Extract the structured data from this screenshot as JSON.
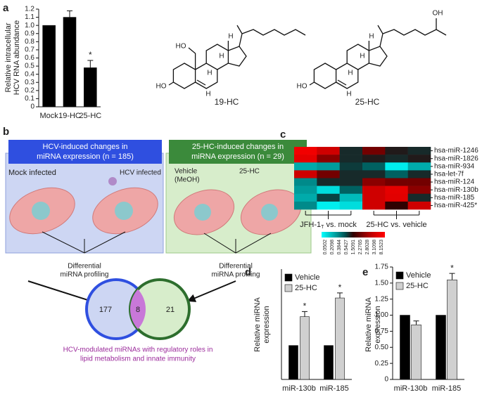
{
  "panel_labels": [
    "a",
    "b",
    "c",
    "d",
    "e"
  ],
  "structures": [
    {
      "name": "19-HC",
      "labels": [
        "HO",
        "HO",
        "H",
        "H",
        "H",
        "H"
      ]
    },
    {
      "name": "25-HC",
      "labels": [
        "HO",
        "H",
        "H",
        "H",
        "H",
        "OH"
      ]
    }
  ],
  "diagram": {
    "left_header": [
      "HCV-induced changes in",
      "miRNA expression (n = 185)"
    ],
    "right_header": [
      "25-HC-induced changes in",
      "miRNA expression (n = 29)"
    ],
    "mock": "Mock infected",
    "hcv": "HCV infected",
    "vehicle": [
      "Vehicle",
      "(MeOH)"
    ],
    "treat": "25-HC",
    "profiling_left": [
      "Differential",
      "miRNA profiling"
    ],
    "profiling_right": [
      "Differential",
      "miRNA profiling"
    ],
    "venn": [
      "177",
      "8",
      "21"
    ],
    "caption": [
      "HCV-modulated miRNAs with regulatory roles in",
      "lipid metabolism and innate immunity"
    ]
  },
  "chart_data": [
    {
      "type": "bar",
      "y_label": [
        "Relative intracellular",
        "HCV RNA abundance"
      ],
      "categories": [
        "Mock",
        "19-HC",
        "25-HC"
      ],
      "series": [
        {
          "color": "#000000",
          "values": [
            1.0,
            1.1,
            0.48
          ],
          "errors": [
            0,
            0.08,
            0.09
          ],
          "annotations": [
            null,
            null,
            "*"
          ]
        }
      ],
      "ylim": [
        0,
        1.2
      ],
      "yticks": [
        0,
        0.1,
        0.2,
        0.3,
        0.4,
        0.5,
        0.6,
        0.7,
        0.8,
        0.9,
        {
          "value": 1,
          "label": "1.0"
        },
        1.1,
        1.2
      ]
    },
    {
      "type": "heatmap",
      "rows": [
        "hsa-miR-1246",
        "hsa-miR-1826",
        "hsa-miR-934",
        "hsa-let-7f",
        "hsa-miR-124",
        "hsa-miR-130b",
        "hsa-miR-185",
        "hsa-miR-425*"
      ],
      "column_groups": [
        {
          "main": "JFH-1",
          "sub": "T",
          "rest": " vs. mock"
        },
        {
          "main": "25-HC vs. vehicle"
        }
      ],
      "values": [
        [
          6,
          3,
          1,
          2.3,
          1.2,
          1
        ],
        [
          4,
          2.5,
          1,
          1.2,
          1,
          1.2
        ],
        [
          0.3,
          0.35,
          0.8,
          0.5,
          0.1,
          0.3
        ],
        [
          3,
          2.3,
          1,
          1,
          0.5,
          1
        ],
        [
          0.4,
          1,
          1,
          2.5,
          2.3,
          2.3
        ],
        [
          0.35,
          0.15,
          0.5,
          3,
          4,
          2.5
        ],
        [
          0.3,
          0.7,
          0.25,
          3,
          3.5,
          1
        ],
        [
          0.4,
          0.1,
          0.15,
          3,
          1.5,
          3
        ]
      ],
      "colorbar_ticks": [
        0.0502,
        0.2098,
        0.3844,
        0.5427,
        1.5091,
        2.2765,
        2.8028,
        3.1098,
        8.1523
      ],
      "colorbar_colors": [
        "#00ffff",
        "#00c8c8",
        "#009090",
        "#005050",
        "#300000",
        "#700000",
        "#b00000",
        "#e00000",
        "#ff0000"
      ]
    },
    {
      "type": "bar",
      "y_label": [
        "Relative miRNA",
        "expression"
      ],
      "categories": [
        "miR-130b",
        "miR-185"
      ],
      "series": [
        {
          "name": "Vehicle",
          "color": "#000000",
          "values": [
            1,
            1
          ],
          "errors": [
            0,
            0
          ],
          "annotations": [
            null,
            null
          ]
        },
        {
          "name": "25-HC",
          "color": "#d0d0d0",
          "values": [
            1.85,
            2.4
          ],
          "errors": [
            0.15,
            0.15
          ],
          "annotations": [
            "*",
            "*"
          ]
        }
      ],
      "ylim": [
        0,
        3.25
      ]
    },
    {
      "type": "bar",
      "y_label": [
        "Relative miRNA",
        "expression"
      ],
      "categories": [
        "miR-130b",
        "miR-185"
      ],
      "series": [
        {
          "name": "Vehicle",
          "color": "#000000",
          "values": [
            1,
            1
          ],
          "errors": [
            0,
            0
          ],
          "annotations": [
            null,
            null
          ]
        },
        {
          "name": "25-HC",
          "color": "#d0d0d0",
          "values": [
            0.85,
            1.55
          ],
          "errors": [
            0.06,
            0.1
          ],
          "annotations": [
            null,
            "*"
          ]
        }
      ],
      "ylim": [
        0,
        1.75
      ],
      "yticks": [
        0,
        0.25,
        {
          "value": 0.5,
          "label": "0.50"
        },
        0.75,
        {
          "value": 1,
          "label": "1.00"
        },
        1.25,
        {
          "value": 1.5,
          "label": "1.50"
        },
        1.75
      ]
    }
  ]
}
